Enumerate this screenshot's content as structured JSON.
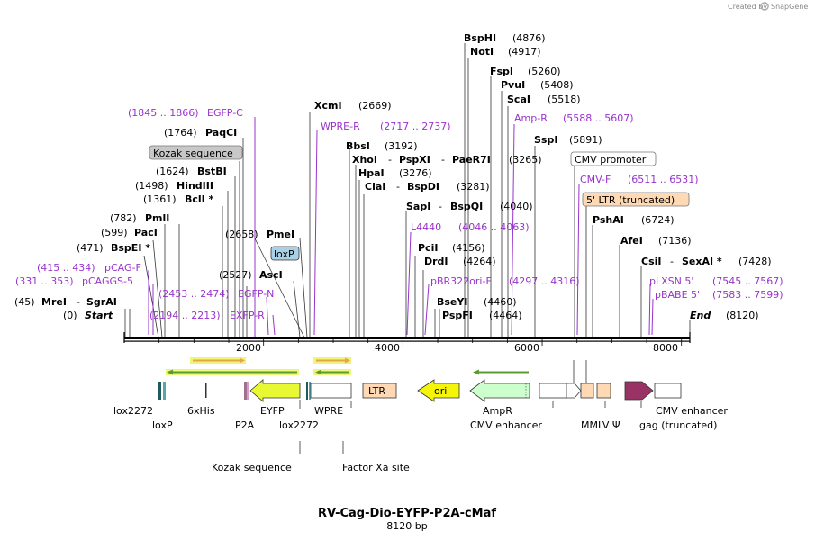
{
  "branding": {
    "created_by": "Created by",
    "brand": "SnapGene"
  },
  "plasmid": {
    "name": "RV-Cag-Dio-EYFP-P2A-cMaf",
    "size_label": "8120 bp"
  },
  "ruler": {
    "start_bp": 0,
    "end_bp": 8120,
    "tick_labels": [
      "2000",
      "4000",
      "6000",
      "8000"
    ]
  },
  "labels": {
    "mrei": "MreI",
    "sgrai": "SgrAI",
    "start": "Start",
    "end": "End",
    "bspei": "BspEI *",
    "paci": "PacI",
    "pmli": "PmlI",
    "bcli": "BclI *",
    "hindiii": "HindIII",
    "bstbi": "BstBI",
    "kozak_box": "Kozak sequence",
    "paqci": "PaqCI",
    "egfpc": "EGFP-C",
    "pmei": "PmeI",
    "loxp_box": "loxP",
    "asci": "AscI",
    "egfpn": "EGFP-N",
    "exfpr": "EXFP-R",
    "pcagf": "pCAG-F",
    "pcaggs5": "pCAGGS-5",
    "xcmi": "XcmI",
    "wprer": "WPRE-R",
    "bbsi": "BbsI",
    "xhoi": "XhoI",
    "pspxi": "PspXI",
    "paer7i": "PaeR7I",
    "hpai": "HpaI",
    "clai": "ClaI",
    "bspdi": "BspDI",
    "sapi": "SapI",
    "bspqi": "BspQI",
    "l4440": "L4440",
    "pcli": "PciI",
    "drdi": "DrdI",
    "pbr322": "pBR322ori-F",
    "bseyi": "BseYI",
    "pspfi": "PspFI",
    "bsphi": "BspHI",
    "noti": "NotI",
    "fspi": "FspI",
    "pvui": "PvuI",
    "scai": "ScaI",
    "ampr": "Amp-R",
    "sspi": "SspI",
    "cmv_promoter_box": "CMV promoter",
    "cmvf": "CMV-F",
    "ltr5_box": "5' LTR (truncated)",
    "pshai": "PshAI",
    "afei": "AfeI",
    "csii": "CsiI",
    "sexai": "SexAI *",
    "plxsn": "pLXSN 5'",
    "pbabe": "pBABE 5'"
  },
  "positions": {
    "mrei": "(45)",
    "start": "(0)",
    "end": "(8120)",
    "bspei": "(471)",
    "paci": "(599)",
    "pmli": "(782)",
    "bcli": "(1361)",
    "hindiii": "(1498)",
    "bstbi": "(1624)",
    "paqci": "(1764)",
    "egfpc": "(1845 .. 1866)",
    "pmei": "(2658)",
    "asci": "(2527)",
    "egfpn": "(2453 .. 2474)",
    "exfpr": "(2194 .. 2213)",
    "pcagf": "(415 .. 434)",
    "pcaggs5": "(331 .. 353)",
    "xcmi": "(2669)",
    "wprer": "(2717 .. 2737)",
    "bbsi": "(3192)",
    "paer7i": "(3265)",
    "hpai": "(3276)",
    "bspdi": "(3281)",
    "bspqi": "(4040)",
    "l4440": "(4046 .. 4063)",
    "pcli": "(4156)",
    "drdi": "(4264)",
    "pbr322": "(4297 .. 4316)",
    "bseyi": "(4460)",
    "pspfi": "(4464)",
    "bsphi": "(4876)",
    "noti": "(4917)",
    "fspi": "(5260)",
    "pvui": "(5408)",
    "scai": "(5518)",
    "ampr": "(5588 .. 5607)",
    "sspi": "(5891)",
    "cmvf": "(6511 .. 6531)",
    "pshai": "(6724)",
    "afei": "(7136)",
    "sexai": "(7428)",
    "plxsn": "(7545 .. 7567)",
    "pbabe": "(7583 .. 7599)"
  },
  "features": {
    "lox2272_a": "lox2272",
    "loxp": "loxP",
    "his6": "6xHis",
    "p2a": "P2A",
    "eyfp": "EYFP",
    "lox2272_b": "lox2272",
    "wpre": "WPRE",
    "ltr": "LTR",
    "ori": "ori",
    "ampr": "AmpR",
    "cmv_enh_a": "CMV enhancer",
    "mmlv": "MMLV Ψ",
    "cmv_enh_b": "CMV enhancer",
    "gag": "gag (truncated)",
    "kozak": "Kozak sequence",
    "factor_xa": "Factor Xa site"
  },
  "colors": {
    "purple": "#9933cc",
    "eyfp": "#e8f934",
    "ori": "#f5f50a",
    "ltr": "#ffd9b3",
    "ampr": "#ccffcc",
    "gag": "#993366",
    "loxp": "#5aa6a6",
    "orange_arrow": "#e8a34d",
    "green_arrow": "#5c9c2e",
    "glow": "#eef67a"
  }
}
